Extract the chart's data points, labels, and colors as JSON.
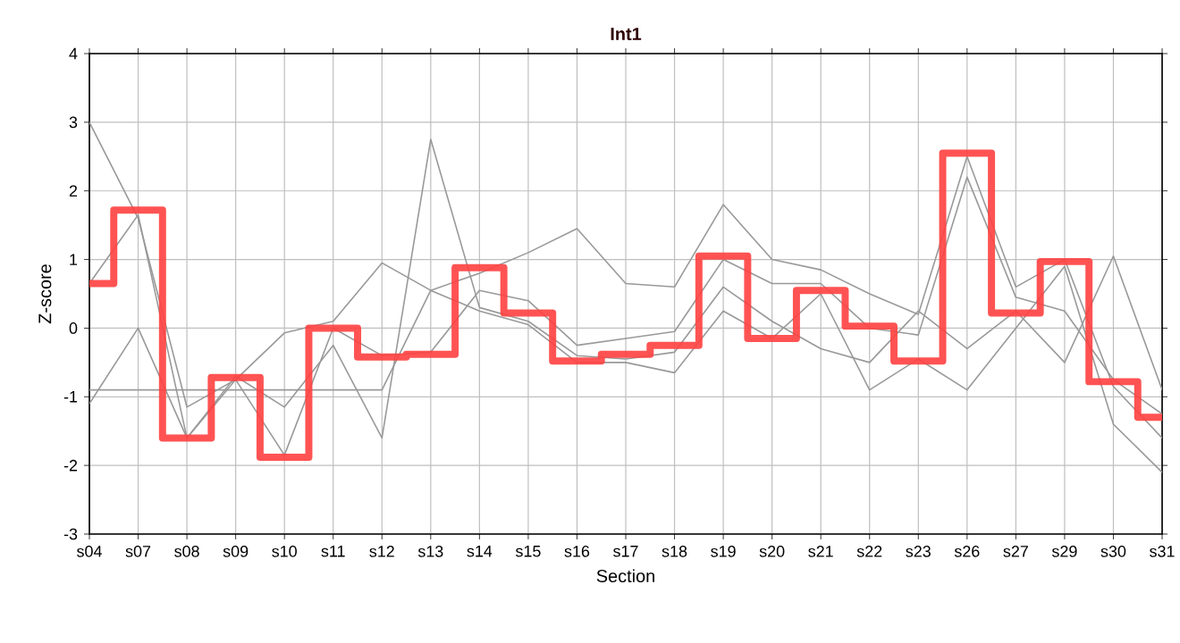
{
  "chart_data": {
    "type": "line",
    "title": "Int1",
    "xlabel": "Section",
    "ylabel": "Z-score",
    "categories": [
      "s04",
      "s07",
      "s08",
      "s09",
      "s10",
      "s11",
      "s12",
      "s13",
      "s14",
      "s15",
      "s16",
      "s17",
      "s18",
      "s19",
      "s20",
      "s21",
      "s22",
      "s23",
      "s26",
      "s27",
      "s29",
      "s30",
      "s31"
    ],
    "ylim": [
      -3,
      4
    ],
    "yticks": [
      -3,
      -2,
      -1,
      0,
      1,
      2,
      3,
      4
    ],
    "grid": true,
    "series": [
      {
        "color": "#999999",
        "values": [
          3.0,
          1.6,
          -1.15,
          -0.75,
          -0.07,
          0.1,
          0.95,
          0.55,
          0.8,
          1.1,
          1.45,
          0.65,
          0.6,
          1.8,
          1.0,
          0.85,
          0.5,
          0.2,
          2.5,
          0.6,
          1.0,
          -0.85,
          -1.6
        ]
      },
      {
        "color": "#999999",
        "values": [
          0.65,
          1.65,
          -1.6,
          -0.75,
          -1.85,
          0.0,
          -0.4,
          -0.35,
          0.55,
          0.4,
          -0.25,
          -0.15,
          -0.05,
          1.0,
          0.65,
          0.65,
          0.0,
          -0.1,
          2.2,
          0.45,
          0.25,
          -0.75,
          -1.25
        ]
      },
      {
        "color": "#999999",
        "values": [
          -1.1,
          0.0,
          -1.6,
          -0.7,
          -1.15,
          -0.25,
          -1.6,
          2.75,
          0.3,
          0.1,
          -0.4,
          -0.45,
          -0.35,
          0.6,
          0.1,
          -0.3,
          -0.5,
          0.25,
          -0.3,
          0.25,
          -0.5,
          1.05,
          -0.9
        ]
      },
      {
        "color": "#999999",
        "values": [
          -0.9,
          -0.9,
          -0.9,
          -0.9,
          -0.9,
          -0.9,
          -0.9,
          0.55,
          0.25,
          0.05,
          -0.5,
          -0.5,
          -0.65,
          0.25,
          -0.15,
          0.5,
          -0.9,
          -0.45,
          -0.9,
          0.0,
          0.9,
          -1.4,
          -2.1
        ]
      },
      {
        "type": "step",
        "color": "#ff4040",
        "values": [
          0.65,
          1.72,
          -1.6,
          -0.72,
          -1.88,
          0.0,
          -0.42,
          -0.38,
          0.88,
          0.22,
          -0.48,
          -0.38,
          -0.25,
          1.05,
          -0.15,
          0.55,
          0.03,
          -0.48,
          2.55,
          0.22,
          0.97,
          -0.78,
          -1.3
        ]
      }
    ]
  }
}
